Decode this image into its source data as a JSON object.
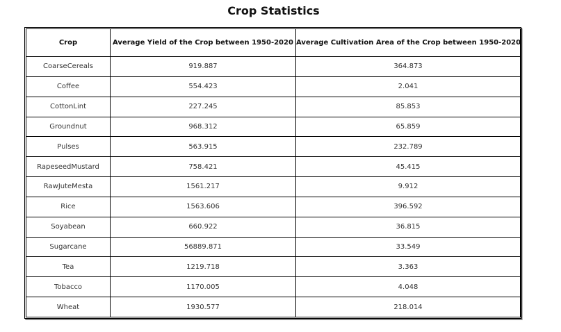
{
  "chart_data": {
    "type": "table",
    "title": "Crop Statistics",
    "columns": [
      "Crop",
      "Average Yield of the Crop between 1950-2020",
      "Average Cultivation Area of the Crop between 1950-2020"
    ],
    "rows": [
      [
        "CoarseCereals",
        "919.887",
        "364.873"
      ],
      [
        "Coffee",
        "554.423",
        "2.041"
      ],
      [
        "CottonLint",
        "227.245",
        "85.853"
      ],
      [
        "Groundnut",
        "968.312",
        "65.859"
      ],
      [
        "Pulses",
        "563.915",
        "232.789"
      ],
      [
        "RapeseedMustard",
        "758.421",
        "45.415"
      ],
      [
        "RawJuteMesta",
        "1561.217",
        "9.912"
      ],
      [
        "Rice",
        "1563.606",
        "396.592"
      ],
      [
        "Soyabean",
        "660.922",
        "36.815"
      ],
      [
        "Sugarcane",
        "56889.871",
        "33.549"
      ],
      [
        "Tea",
        "1219.718",
        "3.363"
      ],
      [
        "Tobacco",
        "1170.005",
        "4.048"
      ],
      [
        "Wheat",
        "1930.577",
        "218.014"
      ]
    ]
  }
}
